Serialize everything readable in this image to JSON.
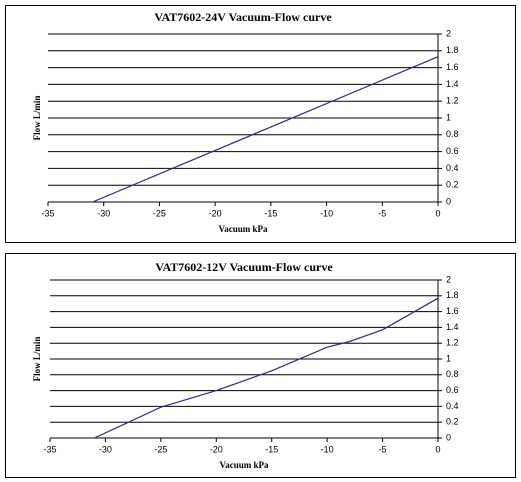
{
  "chart_data": [
    {
      "type": "line",
      "title": "VAT7602-24V Vacuum-Flow curve",
      "x_label": "Vacuum kPa",
      "y_label": "Flow L/min",
      "x": [
        -31,
        0
      ],
      "values": [
        0,
        1.73
      ],
      "color": "#2a2a8a",
      "xlim": [
        -35,
        0
      ],
      "xticks": [
        -35,
        -30,
        -25,
        -20,
        -15,
        -10,
        -5,
        0
      ],
      "ylim": [
        0,
        2
      ],
      "yticks": [
        0,
        0.2,
        0.4,
        0.6,
        0.8,
        1,
        1.2,
        1.4,
        1.6,
        1.8,
        2
      ],
      "grid": true
    },
    {
      "type": "line",
      "title": "VAT7602-12V Vacuum-Flow curve",
      "x_label": "Vacuum kPa",
      "y_label": "Flow L/min",
      "x": [
        -31,
        -25,
        -20,
        -15,
        -10,
        -8,
        -5,
        0
      ],
      "values": [
        0,
        0.39,
        0.6,
        0.85,
        1.15,
        1.22,
        1.37,
        1.77
      ],
      "color": "#2a2a8a",
      "xlim": [
        -35,
        0
      ],
      "xticks": [
        -35,
        -30,
        -25,
        -20,
        -15,
        -10,
        -5,
        0
      ],
      "ylim": [
        0,
        2
      ],
      "yticks": [
        0,
        0.2,
        0.4,
        0.6,
        0.8,
        1,
        1.2,
        1.4,
        1.6,
        1.8,
        2
      ],
      "grid": true
    }
  ]
}
